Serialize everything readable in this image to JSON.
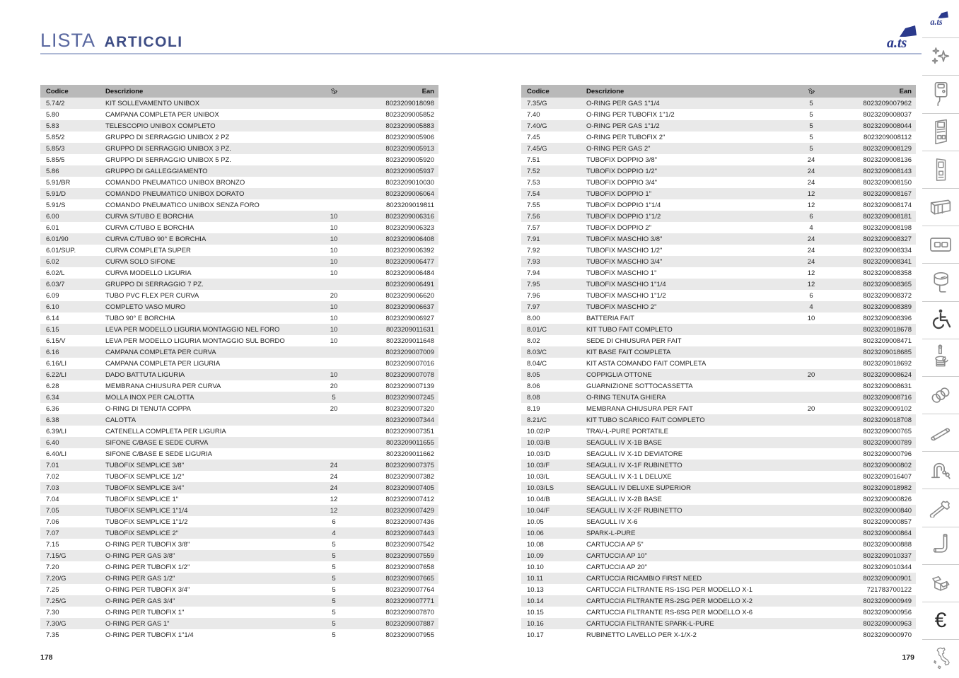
{
  "page": {
    "title_light": "LISTA",
    "title_bold": "ARTICOLI",
    "left_page_number": "178",
    "right_page_number": "179"
  },
  "brand": {
    "logo_text": "a.ts",
    "logo_color": "#2b3a8c"
  },
  "colors": {
    "title_navy": "#3e4d85",
    "rule_blue": "#aeb9d5",
    "header_gray": "#b9b9b9",
    "row_alt_gray": "#e9e9e9"
  },
  "table_headers": {
    "codice": "Codice",
    "descrizione": "Descrizione",
    "qty_icon": "box-icon",
    "ean": "Ean"
  },
  "left_table": {
    "rows": [
      [
        "5.74/2",
        "KIT SOLLEVAMENTO UNIBOX",
        "",
        "8023209018098"
      ],
      [
        "5.80",
        "CAMPANA COMPLETA PER UNIBOX",
        "",
        "8023209005852"
      ],
      [
        "5.83",
        "TELESCOPIO UNIBOX COMPLETO",
        "",
        "8023209005883"
      ],
      [
        "5.85/2",
        "GRUPPO DI SERRAGGIO UNIBOX 2 PZ",
        "",
        "8023209005906"
      ],
      [
        "5.85/3",
        "GRUPPO DI SERRAGGIO UNIBOX 3 PZ.",
        "",
        "8023209005913"
      ],
      [
        "5.85/5",
        "GRUPPO DI SERRAGGIO UNIBOX 5 PZ.",
        "",
        "8023209005920"
      ],
      [
        "5.86",
        "GRUPPO DI GALLEGGIAMENTO",
        "",
        "8023209005937"
      ],
      [
        "5.91/BR",
        "COMANDO PNEUMATICO UNIBOX BRONZO",
        "",
        "8023209010030"
      ],
      [
        "5.91/D",
        "COMANDO PNEUMATICO UNIBOX DORATO",
        "",
        "8023209006064"
      ],
      [
        "5.91/S",
        "COMANDO PNEUMATICO  UNIBOX SENZA FORO",
        "",
        "8023209019811"
      ],
      [
        "6.00",
        "CURVA S/TUBO E BORCHIA",
        "10",
        "8023209006316"
      ],
      [
        "6.01",
        "CURVA C/TUBO E BORCHIA",
        "10",
        "8023209006323"
      ],
      [
        "6.01/90",
        "CURVA C/TUBO 90° E BORCHIA",
        "10",
        "8023209006408"
      ],
      [
        "6.01/SUP.",
        "CURVA COMPLETA SUPER",
        "10",
        "8023209006392"
      ],
      [
        "6.02",
        "CURVA SOLO SIFONE",
        "10",
        "8023209006477"
      ],
      [
        "6.02/L",
        "CURVA MODELLO LIGURIA",
        "10",
        "8023209006484"
      ],
      [
        "6.03/7",
        "GRUPPO DI SERRAGGIO 7 PZ.",
        "",
        "8023209006491"
      ],
      [
        "6.09",
        "TUBO PVC FLEX PER CURVA",
        "20",
        "8023209006620"
      ],
      [
        "6.10",
        "COMPLETO VASO MURO",
        "10",
        "8023209006637"
      ],
      [
        "6.14",
        "TUBO 90° E BORCHIA",
        "10",
        "8023209006927"
      ],
      [
        "6.15",
        "LEVA PER MODELLO LIGURIA MONTAGGIO NEL FORO",
        "10",
        "8023209011631"
      ],
      [
        "6.15/V",
        "LEVA PER MODELLO LIGURIA MONTAGGIO SUL BORDO",
        "10",
        "8023209011648"
      ],
      [
        "6.16",
        "CAMPANA COMPLETA PER CURVA",
        "",
        "8023209007009"
      ],
      [
        "6.16/LI",
        "CAMPANA COMPLETA PER LIGURIA",
        "",
        "8023209007016"
      ],
      [
        "6.22/LI",
        "DADO BATTUTA LIGURIA",
        "10",
        "8023209007078"
      ],
      [
        "6.28",
        "MEMBRANA CHIUSURA PER CURVA",
        "20",
        "8023209007139"
      ],
      [
        "6.34",
        "MOLLA INOX PER CALOTTA",
        "5",
        "8023209007245"
      ],
      [
        "6.36",
        "O-RING DI TENUTA COPPA",
        "20",
        "8023209007320"
      ],
      [
        "6.38",
        "CALOTTA",
        "",
        "8023209007344"
      ],
      [
        "6.39/LI",
        "CATENELLA COMPLETA PER LIGURIA",
        "",
        "8023209007351"
      ],
      [
        "6.40",
        "SIFONE C/BASE E SEDE CURVA",
        "",
        "8023209011655"
      ],
      [
        "6.40/LI",
        "SIFONE C/BASE E SEDE LIGURIA",
        "",
        "8023209011662"
      ],
      [
        "7.01",
        "TUBOFIX SEMPLICE 3/8\"",
        "24",
        "8023209007375"
      ],
      [
        "7.02",
        "TUBOFIX SEMPLICE 1/2\"",
        "24",
        "8023209007382"
      ],
      [
        "7.03",
        "TUBOFIX SEMPLICE 3/4\"",
        "24",
        "8023209007405"
      ],
      [
        "7.04",
        "TUBOFIX SEMPLICE 1\"",
        "12",
        "8023209007412"
      ],
      [
        "7.05",
        "TUBOFIX SEMPLICE 1\"1/4",
        "12",
        "8023209007429"
      ],
      [
        "7.06",
        "TUBOFIX SEMPLICE 1\"1/2",
        "6",
        "8023209007436"
      ],
      [
        "7.07",
        "TUBOFIX SEMPLICE 2\"",
        "4",
        "8023209007443"
      ],
      [
        "7.15",
        "O-RING PER TUBOFIX 3/8\"",
        "5",
        "8023209007542"
      ],
      [
        "7.15/G",
        "O-RING PER GAS 3/8\"",
        "5",
        "8023209007559"
      ],
      [
        "7.20",
        "O-RING PER TUBOFIX 1/2\"",
        "5",
        "8023209007658"
      ],
      [
        "7.20/G",
        "O-RING PER GAS 1/2\"",
        "5",
        "8023209007665"
      ],
      [
        "7.25",
        "O-RING PER TUBOFIX 3/4\"",
        "5",
        "8023209007764"
      ],
      [
        "7.25/G",
        "O-RING PER GAS 3/4\"",
        "5",
        "8023209007771"
      ],
      [
        "7.30",
        "O-RING PER TUBOFIX 1\"",
        "5",
        "8023209007870"
      ],
      [
        "7.30/G",
        "O-RING PER GAS 1\"",
        "5",
        "8023209007887"
      ],
      [
        "7.35",
        "O-RING PER TUBOFIX 1\"1/4",
        "5",
        "8023209007955"
      ]
    ]
  },
  "right_table": {
    "rows": [
      [
        "7.35/G",
        "O-RING PER GAS 1\"1/4",
        "5",
        "8023209007962"
      ],
      [
        "7.40",
        "O-RING PER TUBOFIX 1\"1/2",
        "5",
        "8023209008037"
      ],
      [
        "7.40/G",
        "O-RING PER GAS 1\"1/2",
        "5",
        "8023209008044"
      ],
      [
        "7.45",
        "O-RING PER TUBOFIX 2\"",
        "5",
        "8023209008112"
      ],
      [
        "7.45/G",
        "O-RING PER GAS 2\"",
        "5",
        "8023209008129"
      ],
      [
        "7.51",
        "TUBOFIX DOPPIO  3/8\"",
        "24",
        "8023209008136"
      ],
      [
        "7.52",
        "TUBOFIX DOPPIO  1/2\"",
        "24",
        "8023209008143"
      ],
      [
        "7.53",
        "TUBOFIX DOPPIO  3/4\"",
        "24",
        "8023209008150"
      ],
      [
        "7.54",
        "TUBOFIX DOPPIO  1\"",
        "12",
        "8023209008167"
      ],
      [
        "7.55",
        "TUBOFIX DOPPIO  1\"1/4",
        "12",
        "8023209008174"
      ],
      [
        "7.56",
        "TUBOFIX DOPPIO  1\"1/2",
        "6",
        "8023209008181"
      ],
      [
        "7.57",
        "TUBOFIX DOPPIO  2\"",
        "4",
        "8023209008198"
      ],
      [
        "7.91",
        "TUBOFIX MASCHIO  3/8\"",
        "24",
        "8023209008327"
      ],
      [
        "7.92",
        "TUBOFIX MASCHIO  1/2\"",
        "24",
        "8023209008334"
      ],
      [
        "7.93",
        "TUBOFIX MASCHIO  3/4\"",
        "24",
        "8023209008341"
      ],
      [
        "7.94",
        "TUBOFIX MASCHIO  1\"",
        "12",
        "8023209008358"
      ],
      [
        "7.95",
        "TUBOFIX MASCHIO  1\"1/4",
        "12",
        "8023209008365"
      ],
      [
        "7.96",
        "TUBOFIX MASCHIO  1\"1/2",
        "6",
        "8023209008372"
      ],
      [
        "7.97",
        "TUBOFIX MASCHIO  2\"",
        "4",
        "8023209008389"
      ],
      [
        "8.00",
        "BATTERIA FAIT",
        "10",
        "8023209008396"
      ],
      [
        "8.01/C",
        "KIT TUBO FAIT COMPLETO",
        "",
        "8023209018678"
      ],
      [
        "8.02",
        "SEDE DI CHIUSURA PER FAIT",
        "",
        "8023209008471"
      ],
      [
        "8.03/C",
        "KIT BASE FAIT COMPLETA",
        "",
        "8023209018685"
      ],
      [
        "8.04/C",
        "KIT ASTA COMANDO FAIT COMPLETA",
        "",
        "8023209018692"
      ],
      [
        "8.05",
        "COPPIGLIA OTTONE",
        "20",
        "8023209008624"
      ],
      [
        "8.06",
        "GUARNIZIONE SOTTOCASSETTA",
        "",
        "8023209008631"
      ],
      [
        "8.08",
        "O-RING TENUTA GHIERA",
        "",
        "8023209008716"
      ],
      [
        "8.19",
        "MEMBRANA CHIUSURA PER FAIT",
        "20",
        "8023209009102"
      ],
      [
        "8.21/C",
        "KIT TUBO SCARICO FAIT COMPLETO",
        "",
        "8023209018708"
      ],
      [
        "10.02/P",
        "TRAV-L-PURE PORTATILE",
        "",
        "8023209000765"
      ],
      [
        "10.03/B",
        "SEAGULL IV X-1B BASE",
        "",
        "8023209000789"
      ],
      [
        "10.03/D",
        "SEAGULL IV X-1D DEVIATORE",
        "",
        "8023209000796"
      ],
      [
        "10.03/F",
        "SEAGULL IV X-1F RUBINETTO",
        "",
        "8023209000802"
      ],
      [
        "10.03/L",
        "SEAGULL IV X-1 L DELUXE",
        "",
        "8023209016407"
      ],
      [
        "10.03/LS",
        "SEAGULL IV DELUXE SUPERIOR",
        "",
        "8023209018982"
      ],
      [
        "10.04/B",
        "SEAGULL IV X-2B BASE",
        "",
        "8023209000826"
      ],
      [
        "10.04/F",
        "SEAGULL IV X-2F RUBINETTO",
        "",
        "8023209000840"
      ],
      [
        "10.05",
        "SEAGULL IV X-6",
        "",
        "8023209000857"
      ],
      [
        "10.06",
        "SPARK-L-PURE",
        "",
        "8023209000864"
      ],
      [
        "10.08",
        "CARTUCCIA AP 5\"",
        "",
        "8023209000888"
      ],
      [
        "10.09",
        "CARTUCCIA AP 10\"",
        "",
        "8023209010337"
      ],
      [
        "10.10",
        "CARTUCCIA AP 20\"",
        "",
        "8023209010344"
      ],
      [
        "10.11",
        "CARTUCCIA RICAMBIO FIRST NEED",
        "",
        "8023209000901"
      ],
      [
        "10.13",
        "CARTUCCIA FILTRANTE RS-1SG PER MODELLO X-1",
        "",
        "721783700122"
      ],
      [
        "10.14",
        "CARTUCCIA FILTRANTE RS-2SG PER MODELLO X-2",
        "",
        "8023209000949"
      ],
      [
        "10.15",
        "CARTUCCIA FILTRANTE RS-6SG PER MODELLO X-6",
        "",
        "8023209000956"
      ],
      [
        "10.16",
        "CARTUCCIA FILTRANTE SPARK-L-PURE",
        "",
        "8023209000963"
      ],
      [
        "10.17",
        "RUBINETTO LAVELLO PER X-1/X-2",
        "",
        "8023209000970"
      ]
    ]
  },
  "sidebar": {
    "icons": [
      "brand-logo-icon",
      "sparkle-icon",
      "exposed-cistern-icon",
      "concealed-cistern-icon",
      "installation-frame-icon",
      "wall-support-icon",
      "flush-plate-icon",
      "cistern-flushpipe-icon",
      "accessibility-icon",
      "drain-valve-icon",
      "pipe-coupling-icon",
      "pipe-icon",
      "faucet-icon",
      "wrench-icon",
      "elbow-pipe-icon",
      "box-icon",
      "euro-icon",
      "italy-map-icon"
    ],
    "euro_symbol": "€"
  }
}
